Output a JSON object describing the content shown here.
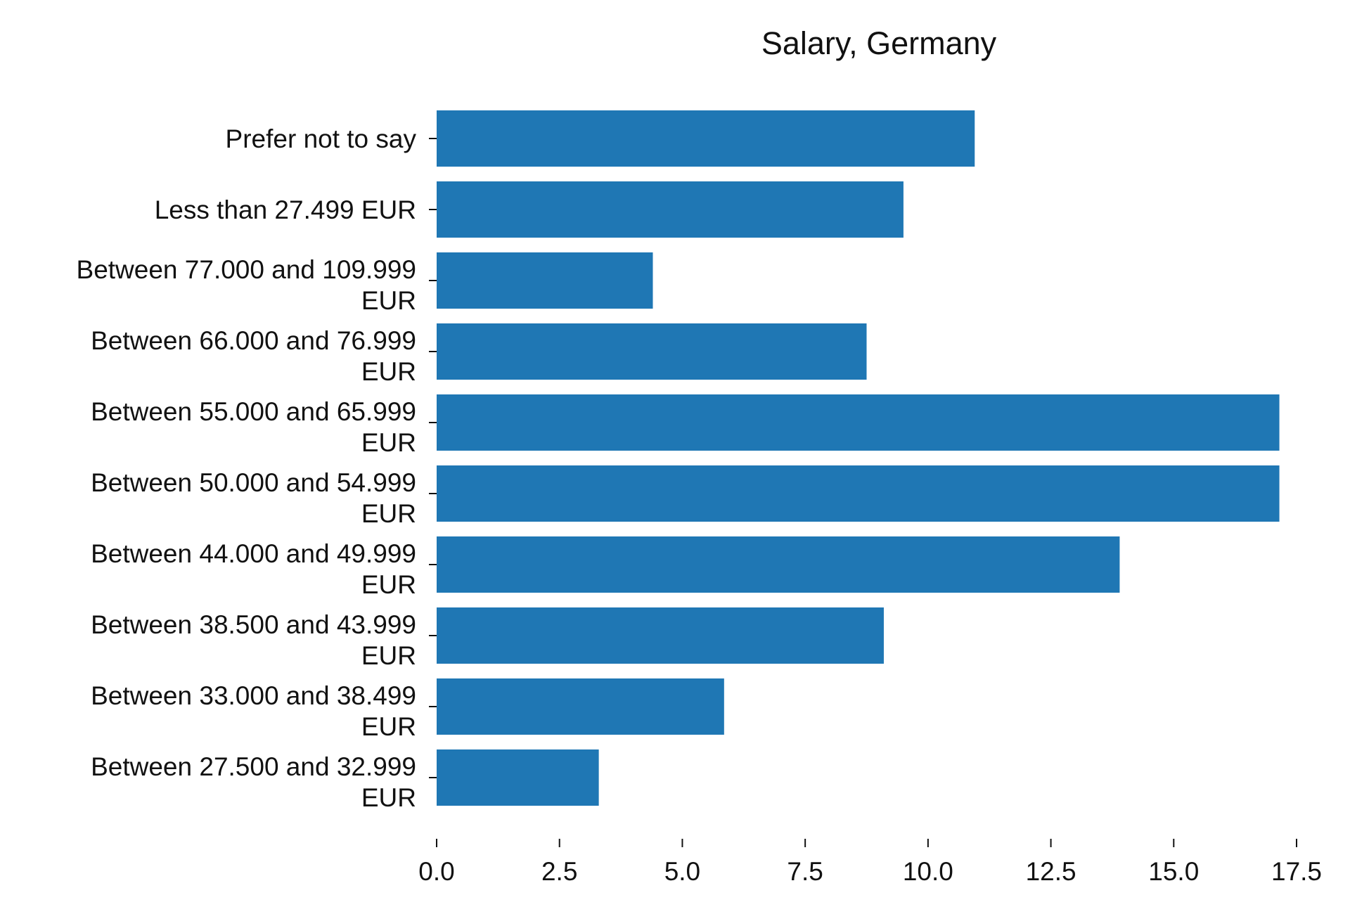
{
  "chart_data": {
    "type": "bar",
    "orientation": "horizontal",
    "title": "Salary, Germany",
    "xlabel": "",
    "ylabel": "",
    "xlim": [
      0,
      17.6
    ],
    "xticks": [
      "0.0",
      "2.5",
      "5.0",
      "7.5",
      "10.0",
      "12.5",
      "15.0",
      "17.5"
    ],
    "grid": false,
    "bar_color": "#1f77b4",
    "categories": [
      [
        "Prefer not to say"
      ],
      [
        "Less than 27.499 EUR"
      ],
      [
        "Between 77.000 and 109.999",
        "EUR"
      ],
      [
        "Between 66.000 and 76.999",
        "EUR"
      ],
      [
        "Between 55.000 and 65.999",
        "EUR"
      ],
      [
        "Between 50.000 and 54.999",
        "EUR"
      ],
      [
        "Between 44.000 and 49.999",
        "EUR"
      ],
      [
        "Between 38.500 and 43.999",
        "EUR"
      ],
      [
        "Between 33.000 and 38.499",
        "EUR"
      ],
      [
        "Between 27.500 and 32.999",
        "EUR"
      ]
    ],
    "values": [
      10.95,
      9.5,
      4.4,
      8.75,
      17.15,
      17.15,
      13.9,
      9.1,
      5.85,
      3.3
    ]
  }
}
